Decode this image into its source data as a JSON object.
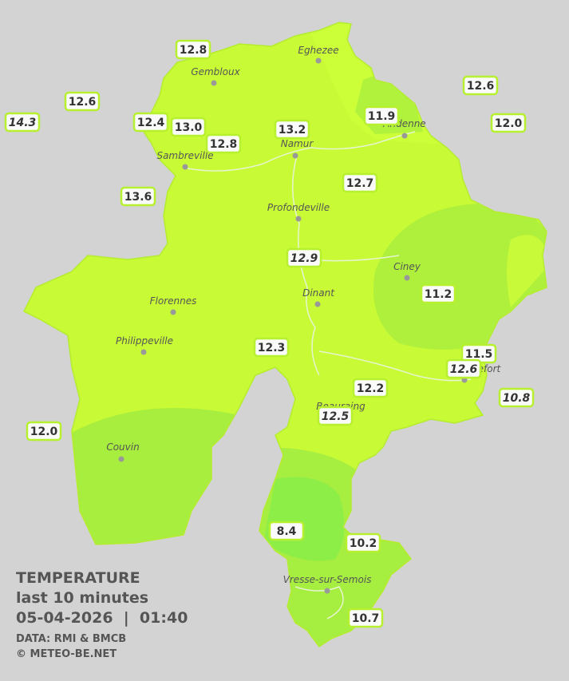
{
  "towns": [
    {
      "name": "Eghezee"
    },
    {
      "name": "Gembloux"
    },
    {
      "name": "Andenne"
    },
    {
      "name": "Namur"
    },
    {
      "name": "Sambreville"
    },
    {
      "name": "Profondeville"
    },
    {
      "name": "Ciney"
    },
    {
      "name": "Dinant"
    },
    {
      "name": "Florennes"
    },
    {
      "name": "Philippeville"
    },
    {
      "name": "Rochefort"
    },
    {
      "name": "Beauraing"
    },
    {
      "name": "Couvin"
    },
    {
      "name": "Vresse-sur-Semois"
    }
  ],
  "stations": [
    {
      "value": "12.8"
    },
    {
      "value": "12.6"
    },
    {
      "value": "14.3"
    },
    {
      "value": "12.4"
    },
    {
      "value": "13.0"
    },
    {
      "value": "12.8"
    },
    {
      "value": "13.2"
    },
    {
      "value": "11.9"
    },
    {
      "value": "12.6"
    },
    {
      "value": "12.0"
    },
    {
      "value": "13.6"
    },
    {
      "value": "12.7"
    },
    {
      "value": "12.9"
    },
    {
      "value": "11.2"
    },
    {
      "value": "11.5"
    },
    {
      "value": "12.6"
    },
    {
      "value": "12.3"
    },
    {
      "value": "12.2"
    },
    {
      "value": "12.5"
    },
    {
      "value": "10.8"
    },
    {
      "value": "12.0"
    },
    {
      "value": "8.4"
    },
    {
      "value": "10.2"
    },
    {
      "value": "10.7"
    }
  ],
  "legend": {
    "title": "TEMPERATURE",
    "subtitle": "last 10 minutes",
    "datetime": "05-04-2026  |  01:40",
    "source": "DATA: RMI & BMCB",
    "copyright": "© METEO-BE.NET"
  }
}
